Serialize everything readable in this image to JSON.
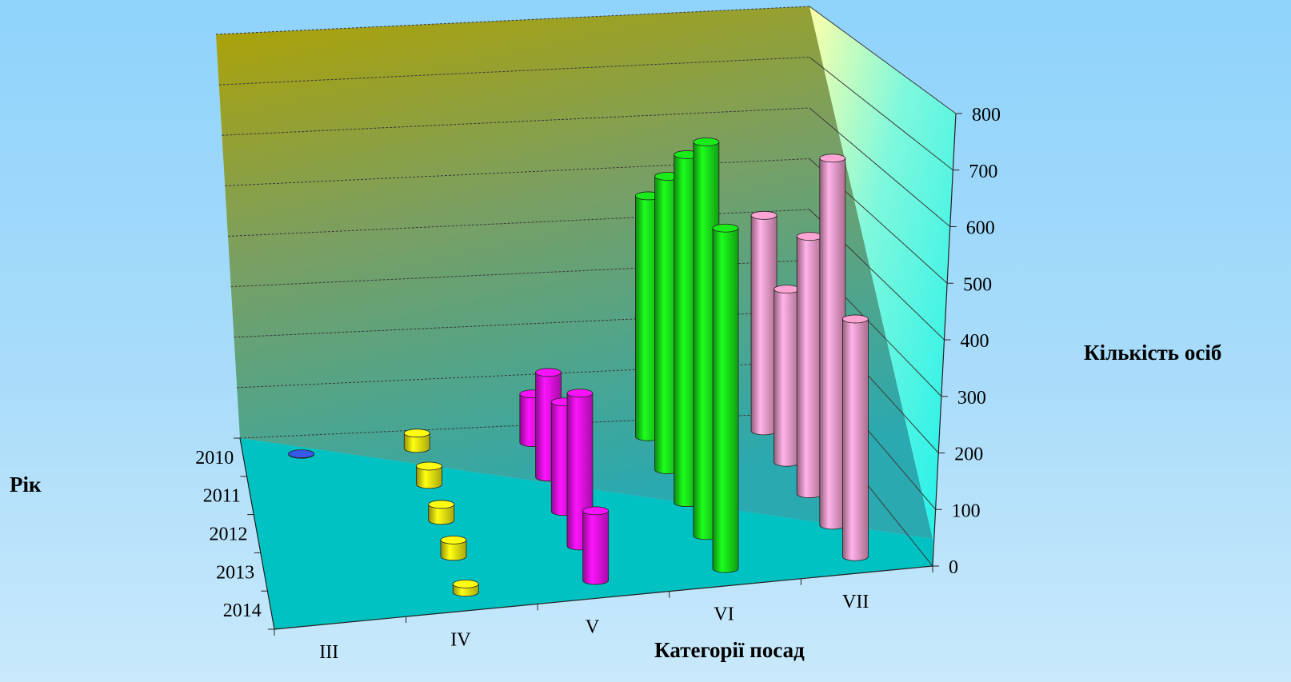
{
  "chart_data": {
    "type": "bar",
    "bar_shape": "cylinder",
    "xlabel": "Категорії посад",
    "ylabel": "Кількість осіб",
    "zlabel": "Рік",
    "categories": [
      "III",
      "IV",
      "V",
      "VI",
      "VII"
    ],
    "years": [
      "2010",
      "2011",
      "2012",
      "2013",
      "2014"
    ],
    "ylim": [
      0,
      800
    ],
    "yticks": [
      0,
      100,
      200,
      300,
      400,
      500,
      600,
      700,
      800
    ],
    "grid": true,
    "series": [
      {
        "category": "III",
        "color": "#3355dd",
        "values": [
          1,
          null,
          null,
          null,
          null
        ]
      },
      {
        "category": "IV",
        "color": "#f2ee10",
        "values": [
          30,
          35,
          30,
          30,
          15
        ]
      },
      {
        "category": "V",
        "color": "#ee11ee",
        "values": [
          95,
          200,
          205,
          280,
          125
        ]
      },
      {
        "category": "VI",
        "color": "#19e019",
        "values": [
          470,
          560,
          650,
          720,
          610
        ]
      },
      {
        "category": "VII",
        "color": "#f59ccb",
        "values": [
          420,
          330,
          480,
          670,
          425
        ]
      }
    ],
    "colors": {
      "floor": "#00c2c2",
      "right_wall_top": "#ffffa8",
      "right_wall_bottom": "#18f0ec",
      "back_wall_top": "#b0a200",
      "back_wall_bottom": "#2aa9b0"
    }
  }
}
